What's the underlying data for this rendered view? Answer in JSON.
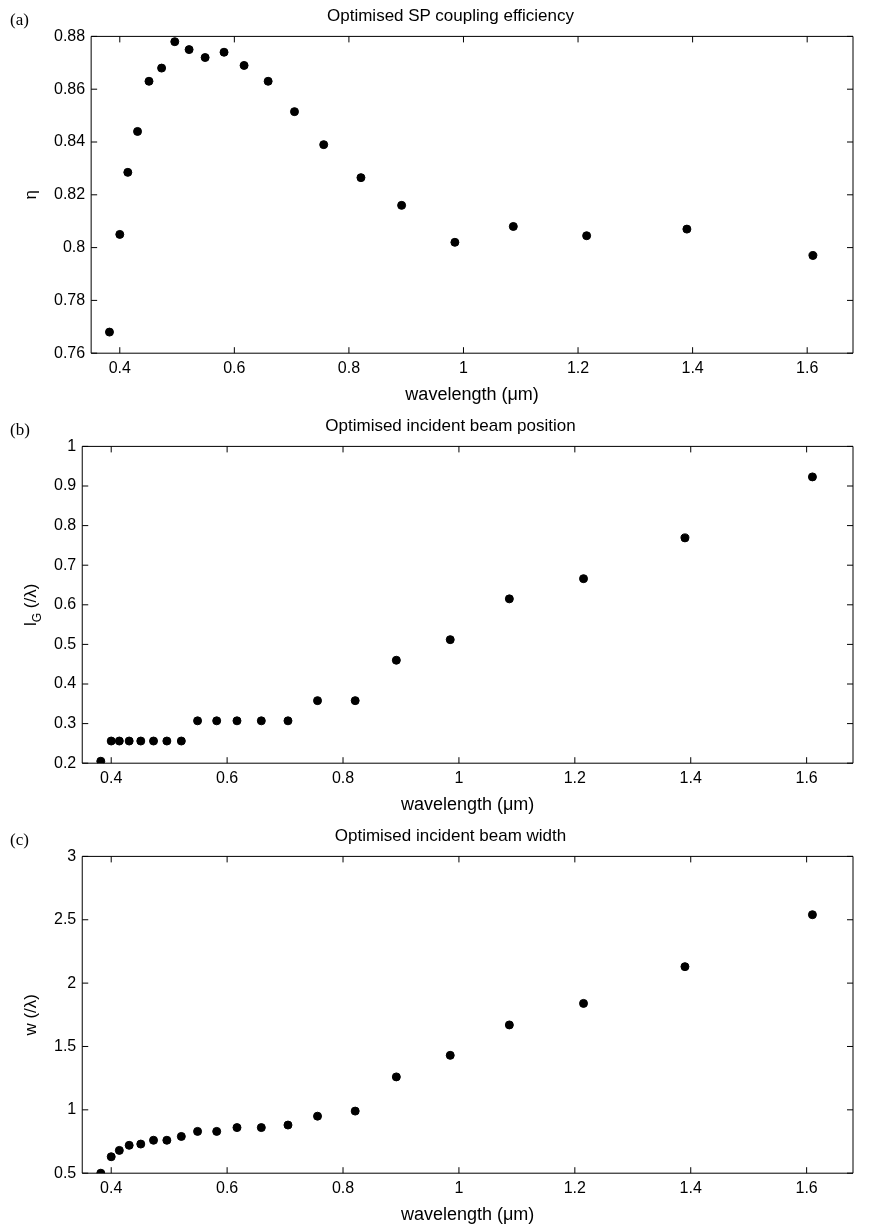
{
  "chart_data": [
    {
      "type": "scatter",
      "title": "Optimised SP coupling efficiency",
      "xlabel": "wavelength (μm)",
      "ylabel": "η",
      "annotations": [
        "(a)"
      ],
      "marker": "circle",
      "x": [
        0.382,
        0.4,
        0.414,
        0.431,
        0.451,
        0.473,
        0.496,
        0.521,
        0.549,
        0.582,
        0.617,
        0.659,
        0.705,
        0.756,
        0.821,
        0.892,
        0.985,
        1.087,
        1.215,
        1.39,
        1.61
      ],
      "series": [
        {
          "color": "#000000",
          "values": [
            0.768,
            0.805,
            0.8285,
            0.844,
            0.863,
            0.868,
            0.878,
            0.875,
            0.872,
            0.874,
            0.869,
            0.863,
            0.8515,
            0.839,
            0.8265,
            0.816,
            0.802,
            0.808,
            0.8045,
            0.807,
            0.797
          ]
        }
      ],
      "xlim": [
        0.35,
        1.68
      ],
      "xticks": [
        0.4,
        0.6,
        0.8,
        1,
        1.2,
        1.4,
        1.6
      ],
      "ylim": [
        0.76,
        0.88
      ],
      "yticks": [
        0.76,
        0.78,
        0.8,
        0.82,
        0.84,
        0.86,
        0.88
      ]
    },
    {
      "type": "scatter",
      "title": "Optimised incident beam position",
      "xlabel": "wavelength (μm)",
      "ylabel": "l$_{G}$ (/λ)",
      "annotations": [
        "(b)"
      ],
      "marker": "circle",
      "x": [
        0.382,
        0.4,
        0.414,
        0.431,
        0.451,
        0.473,
        0.496,
        0.521,
        0.549,
        0.582,
        0.617,
        0.659,
        0.705,
        0.756,
        0.821,
        0.892,
        0.985,
        1.087,
        1.215,
        1.39,
        1.61
      ],
      "series": [
        {
          "color": "#000000",
          "values": [
            0.205,
            0.256,
            0.256,
            0.256,
            0.256,
            0.256,
            0.256,
            0.256,
            0.307,
            0.307,
            0.307,
            0.307,
            0.307,
            0.358,
            0.358,
            0.46,
            0.512,
            0.615,
            0.666,
            0.769,
            0.923
          ]
        }
      ],
      "xlim": [
        0.35,
        1.68
      ],
      "xticks": [
        0.4,
        0.6,
        0.8,
        1,
        1.2,
        1.4,
        1.6
      ],
      "ylim": [
        0.2,
        1
      ],
      "yticks": [
        0.2,
        0.3,
        0.4,
        0.5,
        0.6,
        0.7,
        0.8,
        0.9,
        1
      ]
    },
    {
      "type": "scatter",
      "title": "Optimised incident beam width",
      "xlabel": "wavelength (μm)",
      "ylabel": "w (/λ)",
      "annotations": [
        "(c)"
      ],
      "marker": "circle",
      "x": [
        0.382,
        0.4,
        0.414,
        0.431,
        0.451,
        0.473,
        0.496,
        0.521,
        0.549,
        0.582,
        0.617,
        0.659,
        0.705,
        0.756,
        0.821,
        0.892,
        0.985,
        1.087,
        1.215,
        1.39,
        1.61
      ],
      "series": [
        {
          "color": "#000000",
          "values": [
            0.5,
            0.63,
            0.68,
            0.72,
            0.73,
            0.76,
            0.76,
            0.79,
            0.83,
            0.83,
            0.86,
            0.86,
            0.88,
            0.95,
            0.99,
            1.26,
            1.43,
            1.67,
            1.84,
            2.13,
            2.54
          ]
        }
      ],
      "xlim": [
        0.35,
        1.68
      ],
      "xticks": [
        0.4,
        0.6,
        0.8,
        1,
        1.2,
        1.4,
        1.6
      ],
      "ylim": [
        0.5,
        3
      ],
      "yticks": [
        0.5,
        1,
        1.5,
        2,
        2.5,
        3
      ]
    }
  ]
}
